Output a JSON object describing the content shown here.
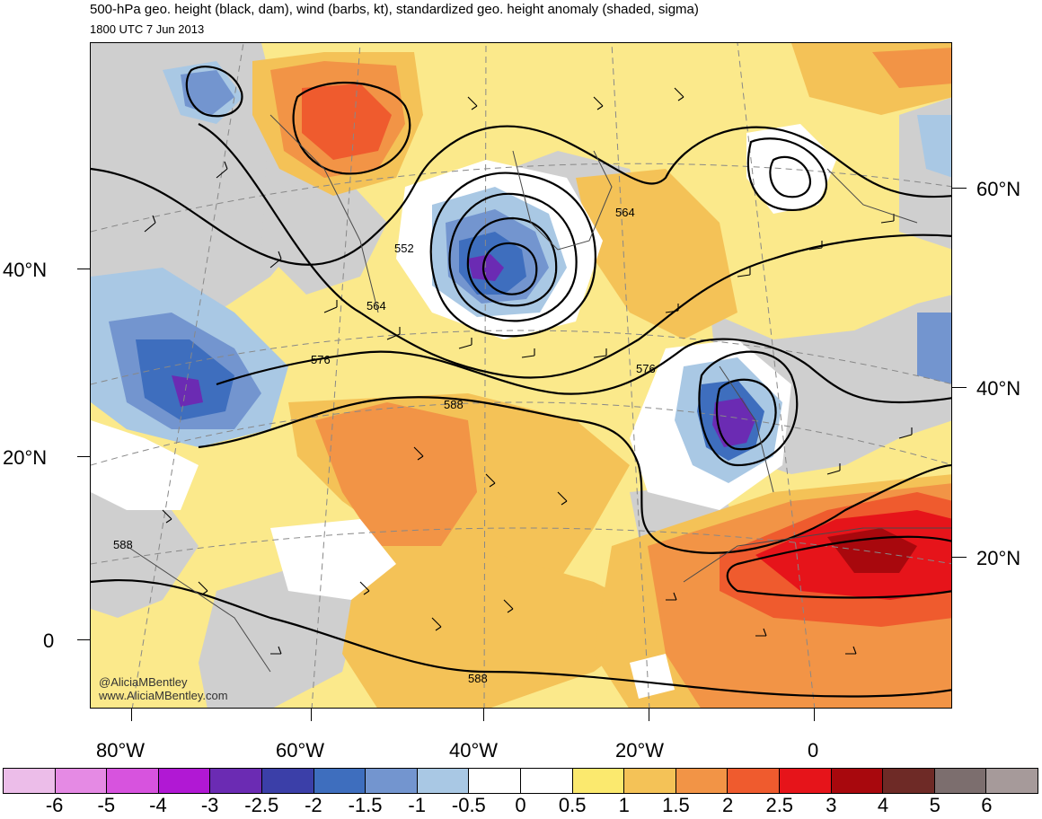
{
  "header": {
    "title": "500-hPa geo. height (black, dam), wind (barbs, kt), standardized geo. height anomaly (shaded, sigma)",
    "subtitle": "1800 UTC 7 Jun 2013"
  },
  "axes": {
    "lat_left": [
      "40°N",
      "20°N",
      "0"
    ],
    "lat_right": [
      "60°N",
      "40°N",
      "20°N"
    ],
    "lon_bottom": [
      "80°W",
      "60°W",
      "40°W",
      "20°W",
      "0"
    ]
  },
  "contour_labels": [
    "552",
    "564",
    "564",
    "576",
    "576",
    "588",
    "588",
    "588"
  ],
  "credits": {
    "handle": "@AliciaMBentley",
    "website": "www.AliciaMBentley.com"
  },
  "colorbar": {
    "colors": [
      "#ecbde9",
      "#e58ae4",
      "#d753de",
      "#b118d4",
      "#6b2bb3",
      "#3b3fa8",
      "#3e6ebe",
      "#7395cf",
      "#a9c8e4",
      "#ffffff",
      "#ffffff",
      "#fbe96e",
      "#f4c257",
      "#f29446",
      "#ef5b2e",
      "#e6141a",
      "#a8080d",
      "#6e2a26",
      "#7c6e6e",
      "#a69a9a"
    ],
    "labels": [
      "-6",
      "-5",
      "-4",
      "-3",
      "-2.5",
      "-2",
      "-1.5",
      "-1",
      "-0.5",
      "0",
      "0.5",
      "1",
      "1.5",
      "2",
      "2.5",
      "3",
      "4",
      "5",
      "6"
    ]
  }
}
